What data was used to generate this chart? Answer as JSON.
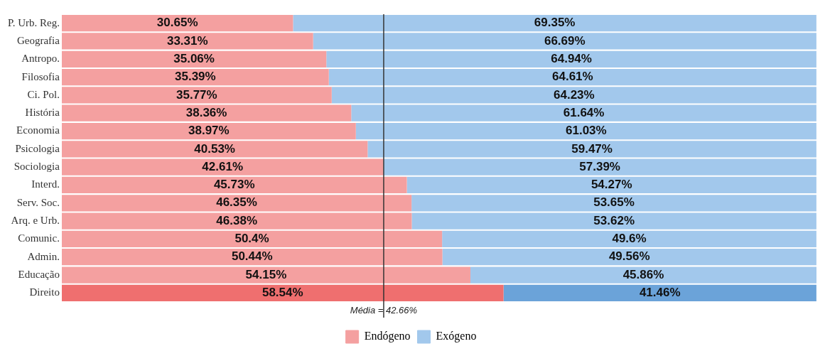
{
  "chart_data": {
    "type": "bar",
    "orientation": "horizontal",
    "stacked": true,
    "categories": [
      "P. Urb. Reg.",
      "Geografia",
      "Antropo.",
      "Filosofia",
      "Ci. Pol.",
      "História",
      "Economia",
      "Psicologia",
      "Sociologia",
      "Interd.",
      "Serv. Soc.",
      "Arq. e Urb.",
      "Comunic.",
      "Admin.",
      "Educação",
      "Direito"
    ],
    "series": [
      {
        "name": "Endógeno",
        "color": "#f4a0a0",
        "colors": [
          "#f4a0a0",
          "#f4a0a0",
          "#f4a0a0",
          "#f4a0a0",
          "#f4a0a0",
          "#f4a0a0",
          "#f4a0a0",
          "#f4a0a0",
          "#f4a0a0",
          "#f4a0a0",
          "#f4a0a0",
          "#f4a0a0",
          "#f4a0a0",
          "#f4a0a0",
          "#f4a0a0",
          "#ef6f6f"
        ],
        "values": [
          30.65,
          33.31,
          35.06,
          35.39,
          35.77,
          38.36,
          38.97,
          40.53,
          42.61,
          45.73,
          46.35,
          46.38,
          50.4,
          50.44,
          54.15,
          58.54
        ],
        "value_labels": [
          "30.65%",
          "33.31%",
          "35.06%",
          "35.39%",
          "35.77%",
          "38.36%",
          "38.97%",
          "40.53%",
          "42.61%",
          "45.73%",
          "46.35%",
          "46.38%",
          "50.4%",
          "50.44%",
          "54.15%",
          "58.54%"
        ]
      },
      {
        "name": "Exógeno",
        "color": "#a2c8ec",
        "colors": [
          "#a2c8ec",
          "#a2c8ec",
          "#a2c8ec",
          "#a2c8ec",
          "#a2c8ec",
          "#a2c8ec",
          "#a2c8ec",
          "#a2c8ec",
          "#a2c8ec",
          "#a2c8ec",
          "#a2c8ec",
          "#a2c8ec",
          "#a2c8ec",
          "#a2c8ec",
          "#a2c8ec",
          "#6ba3d9"
        ],
        "values": [
          69.35,
          66.69,
          64.94,
          64.61,
          64.23,
          61.64,
          61.03,
          59.47,
          57.39,
          54.27,
          53.65,
          53.62,
          49.6,
          49.56,
          45.86,
          41.46
        ],
        "value_labels": [
          "69.35%",
          "66.69%",
          "64.94%",
          "64.61%",
          "64.23%",
          "61.64%",
          "61.03%",
          "59.47%",
          "57.39%",
          "54.27%",
          "53.65%",
          "53.62%",
          "49.6%",
          "49.56%",
          "45.86%",
          "41.46%"
        ]
      }
    ],
    "xlim": [
      0,
      100.01
    ],
    "ref_lines": [
      {
        "axis": "x",
        "value": 42.66,
        "label": "Média = 42.66%",
        "color": "#333333"
      }
    ],
    "tick_labels": "y",
    "grid": false,
    "legend": "bottom"
  }
}
